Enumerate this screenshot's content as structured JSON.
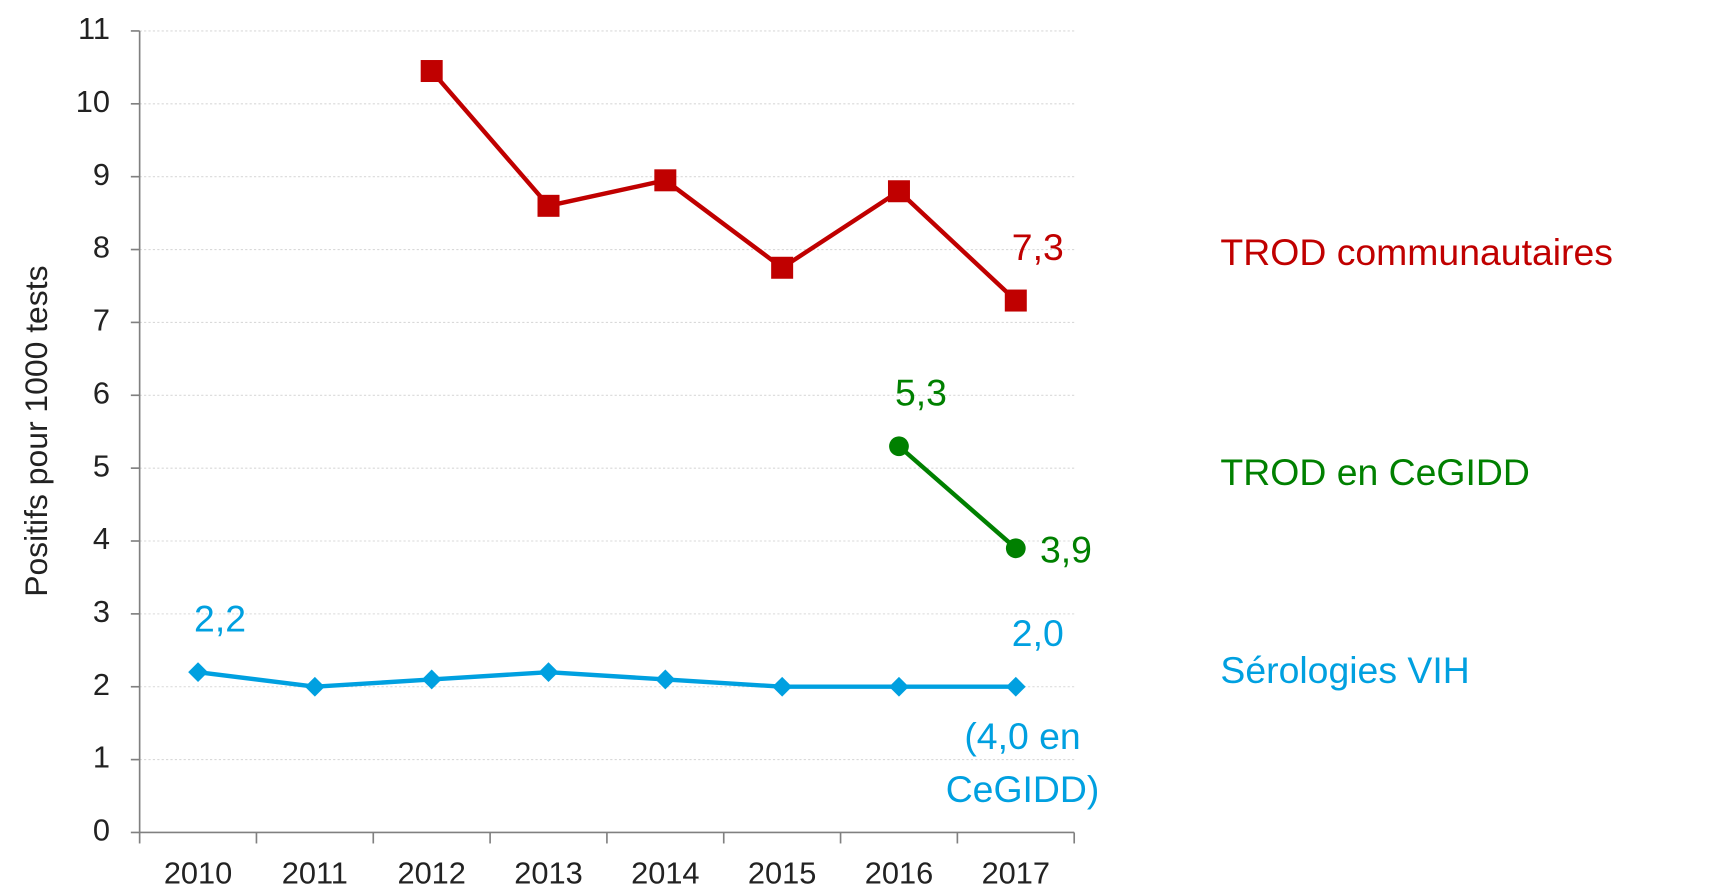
{
  "chart_data": {
    "type": "line",
    "y_label": "Positifs pour 1000 tests",
    "categories": [
      "2010",
      "2011",
      "2012",
      "2013",
      "2014",
      "2015",
      "2016",
      "2017"
    ],
    "series": [
      {
        "name": "TROD communautaires",
        "color": "#c00000",
        "marker": "square",
        "values": [
          null,
          null,
          10.45,
          8.6,
          8.95,
          7.75,
          8.8,
          7.3
        ],
        "value_labels": [
          null,
          null,
          null,
          null,
          null,
          null,
          null,
          "7,3"
        ]
      },
      {
        "name": "TROD en CeGIDD",
        "color": "#008000",
        "marker": "circle",
        "values": [
          null,
          null,
          null,
          null,
          null,
          null,
          5.3,
          3.9
        ],
        "value_labels": [
          null,
          null,
          null,
          null,
          null,
          null,
          "5,3",
          "3,9"
        ]
      },
      {
        "name": "Sérologies VIH",
        "color": "#00a0e0",
        "marker": "diamond",
        "values": [
          2.2,
          2.0,
          2.1,
          2.2,
          2.1,
          2.0,
          2.0,
          2.0
        ],
        "value_labels": [
          "2,2",
          null,
          null,
          null,
          null,
          null,
          null,
          "2,0"
        ]
      }
    ],
    "annotations": [
      {
        "text": [
          "(4,0 en",
          "CeGIDD)"
        ],
        "color": "#00a0e0"
      }
    ],
    "ylim": [
      0,
      11
    ],
    "yticks": [
      0,
      1,
      2,
      3,
      4,
      5,
      6,
      7,
      8,
      9,
      10,
      11
    ],
    "grid": true,
    "legend": "right"
  }
}
